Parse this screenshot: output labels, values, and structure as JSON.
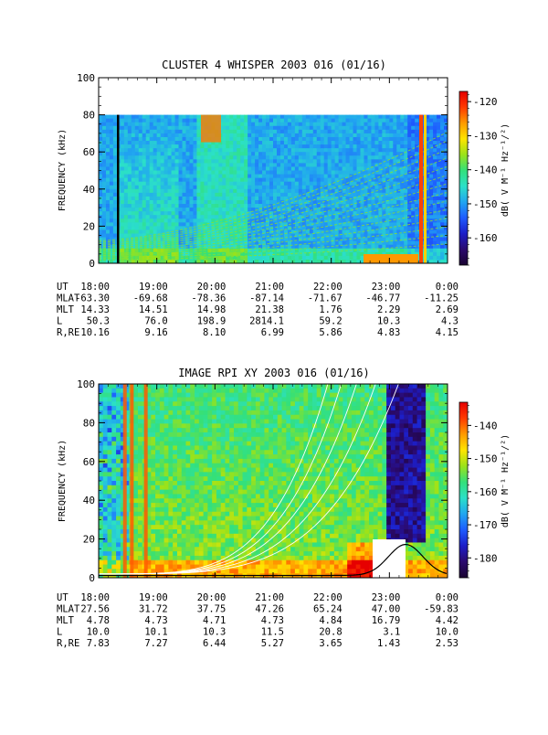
{
  "chart_data": [
    {
      "type": "heatmap",
      "title": "CLUSTER 4 WHISPER 2003 016 (01/16)",
      "ylabel": "FREQUENCY (kHz)",
      "ylim": [
        0,
        100
      ],
      "y_ticks": [
        "0",
        "20",
        "40",
        "60",
        "80",
        "100"
      ],
      "colorbar": {
        "label": "dB( V M⁻¹ Hz⁻¹/²)",
        "range": [
          -168,
          -117
        ],
        "ticks": [
          "-120",
          "-130",
          "-140",
          "-150",
          "-160"
        ]
      },
      "data_fmax_khz": 80,
      "ephemeris": {
        "rows": [
          {
            "label": "UT",
            "values": [
              "18:00",
              "19:00",
              "20:00",
              "21:00",
              "22:00",
              "23:00",
              "0:00"
            ]
          },
          {
            "label": "MLAT",
            "values": [
              "-63.30",
              "-69.68",
              "-78.36",
              "-87.14",
              "-71.67",
              "-46.77",
              "-11.25"
            ]
          },
          {
            "label": "MLT",
            "values": [
              "14.33",
              "14.51",
              "14.98",
              "21.38",
              "1.76",
              "2.29",
              "2.69"
            ]
          },
          {
            "label": "L",
            "values": [
              "50.3",
              "76.0",
              "198.9",
              "2814.1",
              "59.2",
              "10.3",
              "4.3"
            ]
          },
          {
            "label": "R,RE",
            "values": [
              "10.16",
              "9.16",
              "8.10",
              "6.99",
              "5.86",
              "4.83",
              "4.15"
            ]
          }
        ]
      }
    },
    {
      "type": "heatmap",
      "title": "IMAGE RPI XY 2003 016 (01/16)",
      "ylabel": "FREQUENCY (kHz)",
      "ylim": [
        0,
        100
      ],
      "y_ticks": [
        "0",
        "20",
        "40",
        "60",
        "80",
        "100"
      ],
      "colorbar": {
        "label": "dB( V M⁻¹ Hz⁻¹/²)",
        "range": [
          -186,
          -133
        ],
        "ticks": [
          "-140",
          "-150",
          "-160",
          "-170",
          "-180"
        ]
      },
      "ephemeris": {
        "rows": [
          {
            "label": "UT",
            "values": [
              "18:00",
              "19:00",
              "20:00",
              "21:00",
              "22:00",
              "23:00",
              "0:00"
            ]
          },
          {
            "label": "MLAT",
            "values": [
              "27.56",
              "31.72",
              "37.75",
              "47.26",
              "65.24",
              "47.00",
              "-59.83"
            ]
          },
          {
            "label": "MLT",
            "values": [
              "4.78",
              "4.73",
              "4.71",
              "4.73",
              "4.84",
              "16.79",
              "4.42"
            ]
          },
          {
            "label": "L",
            "values": [
              "10.0",
              "10.1",
              "10.3",
              "11.5",
              "20.8",
              "3.1",
              "10.0"
            ]
          },
          {
            "label": "R,RE",
            "values": [
              "7.83",
              "7.27",
              "6.44",
              "5.27",
              "3.65",
              "1.43",
              "2.53"
            ]
          }
        ]
      }
    }
  ],
  "colors": {
    "colormap": [
      "#1a0330",
      "#2b0a6e",
      "#1c1ec8",
      "#1e5cff",
      "#21a6f0",
      "#2be0c8",
      "#33e07a",
      "#9be21a",
      "#ffe400",
      "#ff9a00",
      "#ff3a00",
      "#e60000"
    ]
  }
}
